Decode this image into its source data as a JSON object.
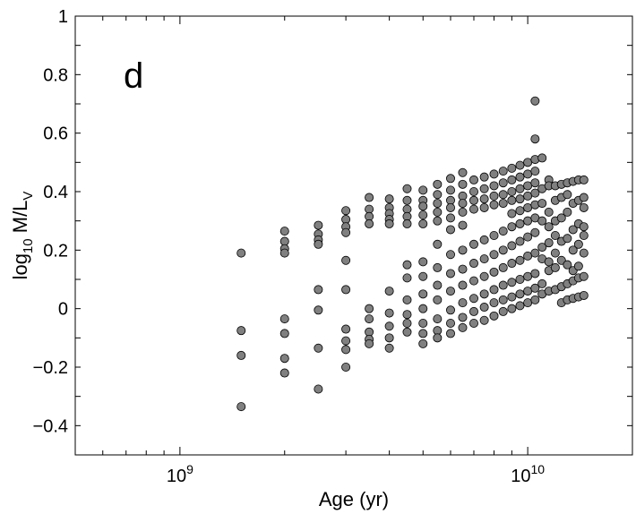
{
  "chart_data": {
    "type": "scatter",
    "title": "",
    "annotation": "d",
    "xlabel": "Age (yr)",
    "ylabel": {
      "base": "log",
      "sub1": "10",
      "mid": " M/L",
      "sub2": "V"
    },
    "xscale": "log",
    "xlim": [
      500000000,
      20000000000
    ],
    "ylim": [
      -0.5,
      1.0
    ],
    "xticks": [
      {
        "value": 1000000000,
        "base": "10",
        "exp": "9"
      },
      {
        "value": 10000000000,
        "base": "10",
        "exp": "10"
      }
    ],
    "yticks": [
      {
        "value": 1.0,
        "label": "1"
      },
      {
        "value": 0.8,
        "label": "0.8"
      },
      {
        "value": 0.6,
        "label": "0.6"
      },
      {
        "value": 0.4,
        "label": "0.4"
      },
      {
        "value": 0.2,
        "label": "0.2"
      },
      {
        "value": 0.0,
        "label": "0"
      },
      {
        "value": -0.2,
        "label": "−0.2"
      },
      {
        "value": -0.4,
        "label": "−0.4"
      }
    ],
    "marker_color": "#808080",
    "columns": [
      {
        "age": 1500000000,
        "values": [
          0.19,
          -0.075,
          -0.16,
          -0.335
        ]
      },
      {
        "age": 2000000000,
        "values": [
          0.265,
          0.23,
          0.205,
          0.19,
          -0.035,
          -0.085,
          -0.17,
          -0.22
        ]
      },
      {
        "age": 2500000000,
        "values": [
          0.285,
          0.255,
          0.235,
          0.22,
          0.065,
          -0.005,
          -0.135,
          -0.275
        ]
      },
      {
        "age": 3000000000,
        "values": [
          0.335,
          0.305,
          0.28,
          0.26,
          0.165,
          0.065,
          -0.07,
          -0.11,
          -0.14,
          -0.2
        ]
      },
      {
        "age": 3500000000,
        "values": [
          0.38,
          0.34,
          0.315,
          0.29,
          0.0,
          -0.035,
          -0.08,
          -0.105,
          -0.12
        ]
      },
      {
        "age": 4000000000,
        "values": [
          0.375,
          0.345,
          0.325,
          0.305,
          0.29,
          0.06,
          -0.015,
          -0.06,
          -0.1,
          -0.135
        ]
      },
      {
        "age": 4500000000,
        "values": [
          0.41,
          0.37,
          0.34,
          0.315,
          0.29,
          0.15,
          0.105,
          0.03,
          -0.02,
          -0.05,
          -0.08
        ]
      },
      {
        "age": 5000000000,
        "values": [
          0.405,
          0.37,
          0.35,
          0.32,
          0.29,
          0.16,
          0.11,
          0.05,
          0.0,
          -0.05,
          -0.085,
          -0.12
        ]
      },
      {
        "age": 5500000000,
        "values": [
          0.425,
          0.39,
          0.36,
          0.33,
          0.3,
          0.22,
          0.14,
          0.08,
          0.03,
          -0.035,
          -0.075,
          -0.1
        ]
      },
      {
        "age": 6000000000,
        "values": [
          0.445,
          0.405,
          0.37,
          0.345,
          0.31,
          0.27,
          0.185,
          0.12,
          0.06,
          -0.005,
          -0.05,
          -0.085
        ]
      },
      {
        "age": 6500000000,
        "values": [
          0.465,
          0.425,
          0.385,
          0.36,
          0.33,
          0.285,
          0.2,
          0.135,
          0.08,
          0.02,
          -0.03,
          -0.065
        ]
      },
      {
        "age": 7000000000,
        "values": [
          0.44,
          0.4,
          0.37,
          0.34,
          0.22,
          0.155,
          0.095,
          0.035,
          -0.01,
          -0.05
        ]
      },
      {
        "age": 7500000000,
        "values": [
          0.45,
          0.41,
          0.375,
          0.345,
          0.235,
          0.17,
          0.11,
          0.05,
          0.005,
          -0.04
        ]
      },
      {
        "age": 8000000000,
        "values": [
          0.46,
          0.42,
          0.385,
          0.355,
          0.25,
          0.185,
          0.125,
          0.065,
          0.02,
          -0.025
        ]
      },
      {
        "age": 8500000000,
        "values": [
          0.47,
          0.43,
          0.39,
          0.36,
          0.265,
          0.2,
          0.14,
          0.08,
          0.03,
          -0.01
        ]
      },
      {
        "age": 9000000000,
        "values": [
          0.48,
          0.44,
          0.4,
          0.37,
          0.325,
          0.28,
          0.215,
          0.155,
          0.09,
          0.04,
          0.0
        ]
      },
      {
        "age": 9500000000,
        "values": [
          0.49,
          0.45,
          0.41,
          0.375,
          0.335,
          0.29,
          0.23,
          0.165,
          0.1,
          0.05,
          0.01
        ]
      },
      {
        "age": 10000000000,
        "values": [
          0.5,
          0.46,
          0.42,
          0.385,
          0.345,
          0.3,
          0.245,
          0.18,
          0.11,
          0.06,
          0.02
        ]
      },
      {
        "age": 10500000000,
        "values": [
          0.71,
          0.58,
          0.51,
          0.47,
          0.43,
          0.395,
          0.355,
          0.31,
          0.26,
          0.19,
          0.12,
          0.07,
          0.03
        ]
      },
      {
        "age": 11000000000,
        "values": [
          0.515,
          0.41,
          0.36,
          0.3,
          0.21,
          0.17,
          0.085,
          0.05
        ]
      },
      {
        "age": 11500000000,
        "values": [
          0.44,
          0.42,
          0.33,
          0.28,
          0.225,
          0.16,
          0.13,
          0.06
        ]
      },
      {
        "age": 12000000000,
        "values": [
          0.42,
          0.37,
          0.3,
          0.25,
          0.19,
          0.14,
          0.065
        ]
      },
      {
        "age": 12500000000,
        "values": [
          0.425,
          0.38,
          0.31,
          0.23,
          0.165,
          0.075,
          0.02
        ]
      },
      {
        "age": 13000000000,
        "values": [
          0.43,
          0.39,
          0.33,
          0.24,
          0.15,
          0.085,
          0.03
        ]
      },
      {
        "age": 13500000000,
        "values": [
          0.435,
          0.36,
          0.27,
          0.2,
          0.13,
          0.095,
          0.035
        ]
      },
      {
        "age": 14000000000,
        "values": [
          0.44,
          0.37,
          0.29,
          0.22,
          0.145,
          0.105,
          0.04
        ]
      },
      {
        "age": 14500000000,
        "values": [
          0.44,
          0.38,
          0.345,
          0.28,
          0.25,
          0.19,
          0.11,
          0.045
        ]
      }
    ]
  }
}
